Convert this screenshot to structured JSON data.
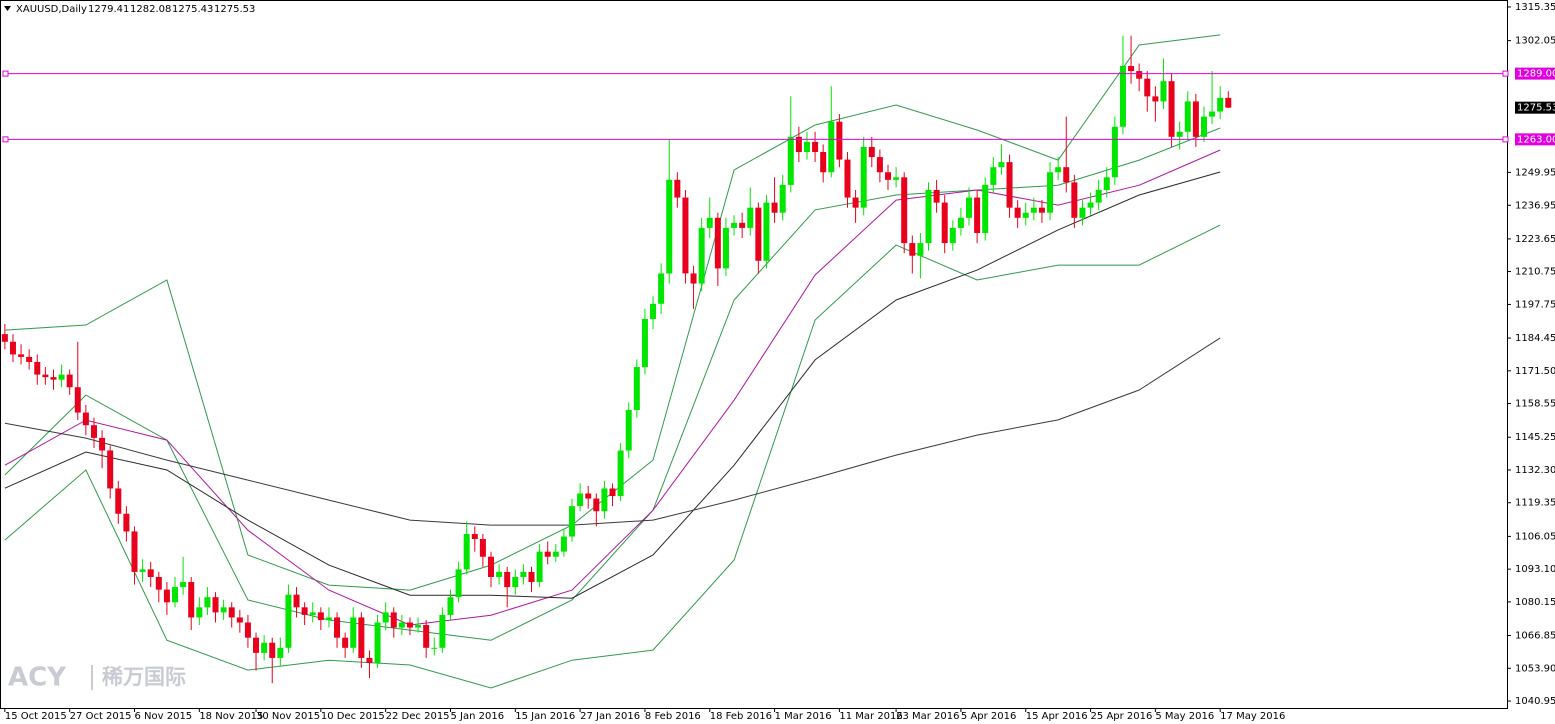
{
  "chart_data": {
    "type": "candlestick",
    "title": "XAUUSD,Daily",
    "up_color": "#00e600",
    "down_color": "#e8001c",
    "grid": false,
    "ylim": [
      1038.2,
      1318.1
    ],
    "yticks": [
      1315.35,
      1302.05,
      1249.95,
      1236.95,
      1223.65,
      1210.75,
      1197.75,
      1184.45,
      {
        "value": 1171.5,
        "label": "1171.50"
      },
      1158.55,
      1145.25,
      {
        "value": 1132.3,
        "label": "1132.30"
      },
      1119.35,
      1106.05,
      {
        "value": 1093.1,
        "label": "1093.10"
      },
      1080.15,
      1066.85,
      {
        "value": 1053.9,
        "label": "1053.90"
      },
      1040.95
    ],
    "xlim": [
      -0.6,
      185.4
    ],
    "xticks": [
      {
        "value": 0,
        "label": "15 Oct 2015"
      },
      {
        "value": 8,
        "label": "27 Oct 2015"
      },
      {
        "value": 16,
        "label": "6 Nov 2015"
      },
      {
        "value": 24,
        "label": "18 Nov 2015"
      },
      {
        "value": 31,
        "label": "30 Nov 2015"
      },
      {
        "value": 39,
        "label": "10 Dec 2015"
      },
      {
        "value": 47,
        "label": "22 Dec 2015"
      },
      {
        "value": 55,
        "label": "5 Jan 2016"
      },
      {
        "value": 63,
        "label": "15 Jan 2016"
      },
      {
        "value": 71,
        "label": "27 Jan 2016"
      },
      {
        "value": 79,
        "label": "8 Feb 2016"
      },
      {
        "value": 87,
        "label": "18 Feb 2016"
      },
      {
        "value": 95,
        "label": "1 Mar 2016"
      },
      {
        "value": 103,
        "label": "11 Mar 2016"
      },
      {
        "value": 110,
        "label": "23 Mar 2016"
      },
      {
        "value": 118,
        "label": "5 Apr 2016"
      },
      {
        "value": 126,
        "label": "15 Apr 2016"
      },
      {
        "value": 134,
        "label": "25 Apr 2016"
      },
      {
        "value": 142,
        "label": "5 May 2016"
      },
      {
        "value": 150,
        "label": "17 May 2016"
      }
    ],
    "hline_color": "#e000e0",
    "hlines": [
      {
        "value": 1289,
        "label": "1289.00"
      },
      {
        "value": 1263,
        "label": "1263.00"
      }
    ],
    "watermark": [
      "ACY",
      "稀万国际"
    ],
    "candles": [
      [
        1186,
        1190,
        1180,
        1183
      ],
      [
        1183,
        1186,
        1175,
        1178
      ],
      [
        1178,
        1182,
        1174,
        1177
      ],
      [
        1177,
        1180,
        1172,
        1175
      ],
      [
        1175,
        1178,
        1166,
        1170
      ],
      [
        1170,
        1173,
        1166,
        1169
      ],
      [
        1169,
        1172,
        1164,
        1168
      ],
      [
        1168,
        1174,
        1165,
        1170
      ],
      [
        1170,
        1172,
        1162,
        1165
      ],
      [
        1165,
        1183,
        1152,
        1155
      ],
      [
        1155,
        1158,
        1146,
        1150
      ],
      [
        1150,
        1153,
        1141,
        1145
      ],
      [
        1145,
        1148,
        1133,
        1140
      ],
      [
        1140,
        1142,
        1121,
        1125
      ],
      [
        1125,
        1128,
        1111,
        1115
      ],
      [
        1115,
        1118,
        1104,
        1108
      ],
      [
        1108,
        1110,
        1087,
        1092
      ],
      [
        1092,
        1097,
        1088,
        1093
      ],
      [
        1093,
        1096,
        1086,
        1090
      ],
      [
        1090,
        1092,
        1080,
        1085
      ],
      [
        1085,
        1088,
        1075,
        1080
      ],
      [
        1080,
        1090,
        1078,
        1086
      ],
      [
        1086,
        1098,
        1083,
        1088
      ],
      [
        1088,
        1090,
        1069,
        1074
      ],
      [
        1074,
        1082,
        1071,
        1078
      ],
      [
        1078,
        1086,
        1075,
        1082
      ],
      [
        1082,
        1084,
        1072,
        1076
      ],
      [
        1076,
        1081,
        1073,
        1078
      ],
      [
        1078,
        1080,
        1070,
        1074
      ],
      [
        1074,
        1077,
        1068,
        1072
      ],
      [
        1072,
        1075,
        1062,
        1066
      ],
      [
        1066,
        1068,
        1053,
        1060
      ],
      [
        1060,
        1067,
        1057,
        1064
      ],
      [
        1064,
        1066,
        1048,
        1058
      ],
      [
        1058,
        1066,
        1055,
        1062
      ],
      [
        1062,
        1087,
        1060,
        1083
      ],
      [
        1083,
        1086,
        1074,
        1078
      ],
      [
        1078,
        1080,
        1071,
        1075
      ],
      [
        1075,
        1080,
        1072,
        1076
      ],
      [
        1076,
        1078,
        1069,
        1073
      ],
      [
        1073,
        1078,
        1070,
        1074
      ],
      [
        1074,
        1076,
        1062,
        1066
      ],
      [
        1066,
        1068,
        1058,
        1062
      ],
      [
        1062,
        1078,
        1060,
        1074
      ],
      [
        1074,
        1076,
        1054,
        1058
      ],
      [
        1058,
        1061,
        1050,
        1056
      ],
      [
        1056,
        1075,
        1054,
        1072
      ],
      [
        1072,
        1080,
        1069,
        1076
      ],
      [
        1076,
        1078,
        1066,
        1070
      ],
      [
        1070,
        1075,
        1067,
        1072
      ],
      [
        1072,
        1074,
        1067,
        1070
      ],
      [
        1070,
        1074,
        1068,
        1071
      ],
      [
        1071,
        1073,
        1058,
        1062
      ],
      [
        1062,
        1066,
        1059,
        1062
      ],
      [
        1062,
        1078,
        1060,
        1075
      ],
      [
        1075,
        1085,
        1073,
        1082
      ],
      [
        1082,
        1096,
        1080,
        1093
      ],
      [
        1093,
        1112,
        1091,
        1107
      ],
      [
        1107,
        1110,
        1100,
        1105
      ],
      [
        1105,
        1107,
        1094,
        1098
      ],
      [
        1098,
        1100,
        1086,
        1090
      ],
      [
        1090,
        1095,
        1087,
        1092
      ],
      [
        1092,
        1094,
        1078,
        1086
      ],
      [
        1086,
        1093,
        1083,
        1090
      ],
      [
        1090,
        1095,
        1087,
        1092
      ],
      [
        1092,
        1094,
        1084,
        1088
      ],
      [
        1088,
        1103,
        1086,
        1100
      ],
      [
        1100,
        1104,
        1095,
        1098
      ],
      [
        1098,
        1103,
        1096,
        1100
      ],
      [
        1100,
        1109,
        1098,
        1106
      ],
      [
        1106,
        1121,
        1104,
        1118
      ],
      [
        1118,
        1127,
        1116,
        1123
      ],
      [
        1123,
        1126,
        1117,
        1121
      ],
      [
        1121,
        1123,
        1110,
        1116
      ],
      [
        1116,
        1128,
        1113,
        1125
      ],
      [
        1125,
        1127,
        1118,
        1122
      ],
      [
        1122,
        1143,
        1120,
        1140
      ],
      [
        1140,
        1159,
        1137,
        1156
      ],
      [
        1156,
        1176,
        1153,
        1173
      ],
      [
        1173,
        1196,
        1170,
        1192
      ],
      [
        1192,
        1201,
        1188,
        1198
      ],
      [
        1198,
        1214,
        1194,
        1210
      ],
      [
        1210,
        1263,
        1206,
        1247
      ],
      [
        1247,
        1250,
        1236,
        1240
      ],
      [
        1240,
        1243,
        1206,
        1210
      ],
      [
        1210,
        1213,
        1196,
        1206
      ],
      [
        1206,
        1232,
        1203,
        1228
      ],
      [
        1228,
        1240,
        1224,
        1232
      ],
      [
        1232,
        1234,
        1205,
        1212
      ],
      [
        1212,
        1232,
        1209,
        1228
      ],
      [
        1228,
        1233,
        1225,
        1230
      ],
      [
        1230,
        1234,
        1224,
        1228
      ],
      [
        1228,
        1244,
        1225,
        1236
      ],
      [
        1236,
        1238,
        1210,
        1215
      ],
      [
        1215,
        1241,
        1212,
        1238
      ],
      [
        1238,
        1248,
        1230,
        1234
      ],
      [
        1234,
        1249,
        1231,
        1245
      ],
      [
        1245,
        1280,
        1242,
        1264
      ],
      [
        1264,
        1268,
        1254,
        1258
      ],
      [
        1258,
        1266,
        1255,
        1262
      ],
      [
        1262,
        1266,
        1254,
        1258
      ],
      [
        1258,
        1261,
        1246,
        1250
      ],
      [
        1250,
        1284,
        1248,
        1270
      ],
      [
        1270,
        1273,
        1252,
        1255
      ],
      [
        1255,
        1258,
        1236,
        1240
      ],
      [
        1240,
        1243,
        1230,
        1236
      ],
      [
        1236,
        1264,
        1233,
        1260
      ],
      [
        1260,
        1264,
        1252,
        1256
      ],
      [
        1256,
        1259,
        1246,
        1250
      ],
      [
        1250,
        1253,
        1243,
        1247
      ],
      [
        1247,
        1252,
        1244,
        1248
      ],
      [
        1248,
        1250,
        1218,
        1222
      ],
      [
        1222,
        1225,
        1210,
        1217
      ],
      [
        1217,
        1226,
        1208,
        1222
      ],
      [
        1222,
        1246,
        1219,
        1243
      ],
      [
        1243,
        1247,
        1234,
        1238
      ],
      [
        1238,
        1241,
        1218,
        1222
      ],
      [
        1222,
        1231,
        1219,
        1228
      ],
      [
        1228,
        1236,
        1225,
        1232
      ],
      [
        1232,
        1244,
        1229,
        1240
      ],
      [
        1240,
        1243,
        1222,
        1226
      ],
      [
        1226,
        1248,
        1223,
        1245
      ],
      [
        1245,
        1256,
        1242,
        1252
      ],
      [
        1252,
        1261,
        1249,
        1254
      ],
      [
        1254,
        1257,
        1232,
        1236
      ],
      [
        1236,
        1239,
        1228,
        1232
      ],
      [
        1232,
        1238,
        1229,
        1234
      ],
      [
        1234,
        1240,
        1231,
        1236
      ],
      [
        1236,
        1239,
        1230,
        1234
      ],
      [
        1234,
        1254,
        1231,
        1250
      ],
      [
        1250,
        1256,
        1247,
        1252
      ],
      [
        1252,
        1272,
        1242,
        1246
      ],
      [
        1246,
        1249,
        1228,
        1232
      ],
      [
        1232,
        1239,
        1229,
        1236
      ],
      [
        1236,
        1242,
        1233,
        1238
      ],
      [
        1238,
        1247,
        1235,
        1243
      ],
      [
        1243,
        1252,
        1240,
        1248
      ],
      [
        1248,
        1272,
        1245,
        1268
      ],
      [
        1268,
        1304,
        1265,
        1292
      ],
      [
        1292,
        1304,
        1285,
        1290
      ],
      [
        1290,
        1293,
        1282,
        1287
      ],
      [
        1287,
        1290,
        1274,
        1280
      ],
      [
        1280,
        1284,
        1270,
        1278
      ],
      [
        1278,
        1295,
        1275,
        1286
      ],
      [
        1286,
        1289,
        1260,
        1264
      ],
      [
        1264,
        1270,
        1259,
        1266
      ],
      [
        1266,
        1282,
        1263,
        1278
      ],
      [
        1278,
        1281,
        1260,
        1264
      ],
      [
        1264,
        1276,
        1262,
        1272
      ],
      [
        1272,
        1290,
        1269,
        1274
      ],
      [
        1274,
        1284,
        1271,
        1279.41
      ],
      [
        1279.41,
        1282.08,
        1275.43,
        1275.53
      ]
    ],
    "indicator_x": [
      0,
      10,
      20,
      30,
      40,
      50,
      60,
      70,
      80,
      90,
      100,
      110,
      120,
      130,
      140,
      150
    ],
    "indicators": [
      {
        "color": "#2e9a4a",
        "values": [
          1187.6,
          1189.6,
          1207.4,
          1098.7,
          1086.8,
          1084.8,
          1094.7,
          1110.5,
          1136.2,
          1250.9,
          1268.7,
          1276.6,
          1266.7,
          1254.8,
          1300.3,
          1304.3
        ]
      },
      {
        "color": "#2e9a4a",
        "values": [
          1104.6,
          1132.3,
          1065.0,
          1053.2,
          1057.1,
          1055.2,
          1046.1,
          1057.1,
          1061.1,
          1096.7,
          1191.6,
          1221.2,
          1207.4,
          1213.3,
          1213.3,
          1229.1
        ]
      },
      {
        "color": "#2e9a4a",
        "values": [
          1130.3,
          1161.9,
          1144.1,
          1080.9,
          1073.0,
          1069.0,
          1065.0,
          1080.9,
          1116.4,
          1199.5,
          1235.1,
          1241.0,
          1243.0,
          1244.9,
          1254.8,
          1267.5
        ]
      },
      {
        "color": "#b0169e",
        "values": [
          1134.2,
          1152.0,
          1144.1,
          1108.5,
          1084.8,
          1071.0,
          1074.9,
          1084.8,
          1116.4,
          1159.9,
          1209.4,
          1239.0,
          1243.0,
          1237.0,
          1244.9,
          1258.8
        ]
      },
      {
        "color": "#2a2a2a",
        "values": [
          1125.1,
          1139.4,
          1132.3,
          1112.5,
          1094.7,
          1082.8,
          1082.8,
          1081.6,
          1098.7,
          1134.2,
          1175.8,
          1199.5,
          1211.3,
          1227.2,
          1241.0,
          1250.1
        ]
      },
      {
        "color": "#3a3a3a",
        "values": [
          1150.8,
          1144.9,
          1136.2,
          1128.3,
          1120.4,
          1112.5,
          1110.5,
          1110.5,
          1112.5,
          1120.4,
          1129.1,
          1138.2,
          1146.1,
          1152.1,
          1163.9,
          1184.5
        ]
      }
    ]
  }
}
